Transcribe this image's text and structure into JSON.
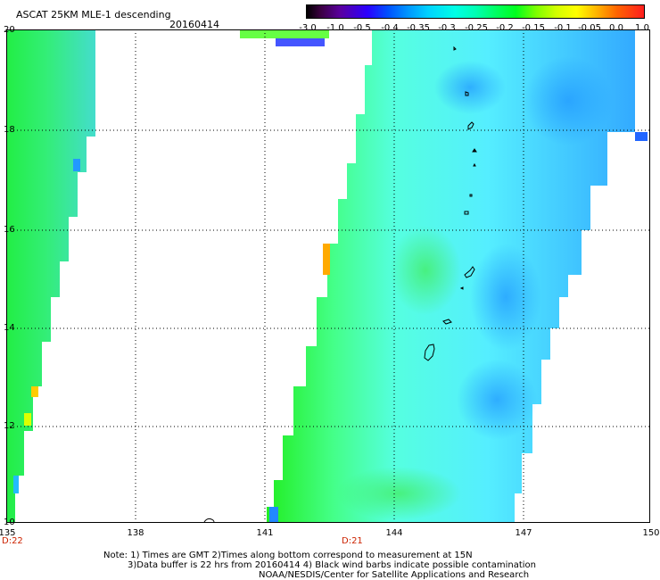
{
  "title": "ASCAT 25KM MLE-1 descending",
  "date": "20160414",
  "colorbar": {
    "ticks": [
      "-3.0",
      "-1.0",
      "-0.5",
      "-0.4",
      "-0.35",
      "-0.3",
      "-0.25",
      "-0.2",
      "-0.15",
      "-0.1",
      "-0.05",
      "0.0",
      "1.0"
    ]
  },
  "map": {
    "lat_labels": [
      "20",
      "18",
      "16",
      "14",
      "12",
      "10"
    ],
    "lon_labels": [
      "135",
      "138",
      "141",
      "144",
      "147",
      "150"
    ],
    "time_labels": [
      "D:22",
      "D:21"
    ]
  },
  "notes": {
    "line1": "Note: 1) Times are GMT 2)Times along bottom correspond to measurement at 15N",
    "line2": "3)Data buffer is 22 hrs from 20160414 4) Black wind barbs indicate possible contamination",
    "line3": "NOAA/NESDIS/Center for Satellite Applications and Research"
  },
  "colors": {
    "grid": "#000000",
    "time_label": "#cc2200",
    "swath_green": "#33ee33",
    "swath_cyan": "#33ffee",
    "swath_blue": "#33bbff"
  }
}
